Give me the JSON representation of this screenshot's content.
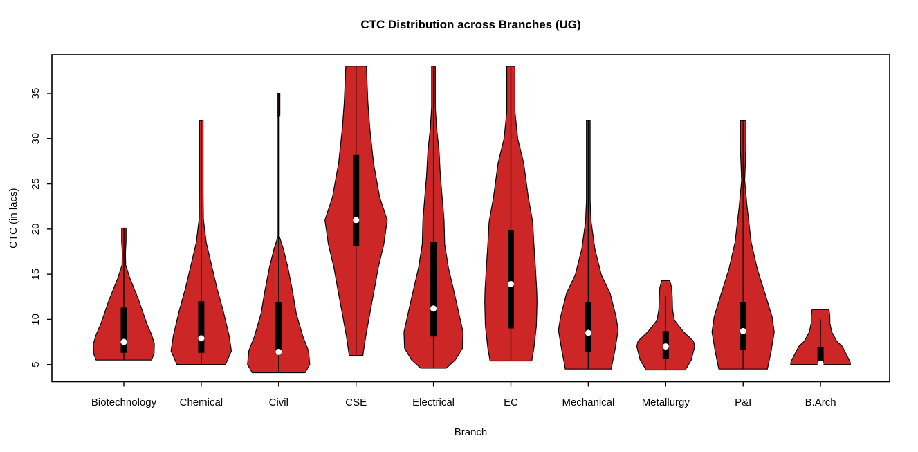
{
  "page": {
    "background": "#FFFFFF"
  },
  "chart_data": {
    "type": "violin",
    "title": "CTC Distribution across Branches (UG)",
    "xlabel": "Branch",
    "ylabel": "CTC (in lacs)",
    "yticks": [
      5,
      10,
      15,
      20,
      25,
      30,
      35
    ],
    "ylim": [
      3.1,
      39.3
    ],
    "grid": false,
    "legend": "none",
    "colors": {
      "violin_fill": "#CD2626",
      "outline": "#000000",
      "iqr_box": "#000000",
      "median_dot": "#FFFFFF",
      "text": "#000000"
    },
    "categories": [
      "Biotechnology",
      "Chemical",
      "Civil",
      "CSE",
      "Electrical",
      "EC",
      "Mechanical",
      "Metallurgy",
      "P&I",
      "B.Arch"
    ],
    "series": [
      {
        "label": "Biotechnology",
        "stats": {
          "min": 5.5,
          "q1": 6.3,
          "median": 7.5,
          "q3": 11.3,
          "max": 20.1
        },
        "line_range": [
          5.5,
          20.1
        ],
        "density_profile": [
          [
            20.1,
            0.07
          ],
          [
            18.6,
            0.07
          ],
          [
            17.3,
            0.05
          ],
          [
            16.0,
            0.06
          ],
          [
            14.7,
            0.18
          ],
          [
            13.4,
            0.33
          ],
          [
            12.2,
            0.47
          ],
          [
            10.9,
            0.6
          ],
          [
            9.6,
            0.73
          ],
          [
            8.3,
            0.89
          ],
          [
            7.3,
            0.98
          ],
          [
            6.2,
            0.97
          ],
          [
            5.5,
            0.89
          ]
        ]
      },
      {
        "label": "Chemical",
        "stats": {
          "min": 5.0,
          "q1": 6.3,
          "median": 7.9,
          "q3": 12.0,
          "max": 32.0
        },
        "line_range": [
          5.0,
          32.0
        ],
        "density_profile": [
          [
            32.0,
            0.06
          ],
          [
            28.0,
            0.06
          ],
          [
            24.0,
            0.06
          ],
          [
            21.1,
            0.07
          ],
          [
            18.5,
            0.16
          ],
          [
            16.0,
            0.33
          ],
          [
            13.4,
            0.51
          ],
          [
            10.9,
            0.71
          ],
          [
            8.3,
            0.89
          ],
          [
            6.5,
            0.97
          ],
          [
            5.0,
            0.78
          ]
        ]
      },
      {
        "label": "Civil",
        "stats": {
          "min": 4.1,
          "q1": 6.2,
          "median": 6.4,
          "q3": 11.9,
          "max": 35.0
        },
        "line_range": [
          4.1,
          35.0
        ],
        "density_profile": [
          [
            35.0,
            0.04
          ],
          [
            32.6,
            0.04
          ],
          [
            32.4,
            0.02
          ],
          [
            19.2,
            0.02
          ],
          [
            17.8,
            0.15
          ],
          [
            15.7,
            0.3
          ],
          [
            13.2,
            0.44
          ],
          [
            10.6,
            0.57
          ],
          [
            8.1,
            0.78
          ],
          [
            6.5,
            0.96
          ],
          [
            5.0,
            1.0
          ],
          [
            4.1,
            0.85
          ]
        ]
      },
      {
        "label": "CSE",
        "stats": {
          "min": 6.0,
          "q1": 18.1,
          "median": 21.0,
          "q3": 28.2,
          "max": 38.0
        },
        "line_range": [
          6.0,
          38.0
        ],
        "density_profile": [
          [
            38.0,
            0.33
          ],
          [
            34.0,
            0.38
          ],
          [
            31.2,
            0.44
          ],
          [
            27.3,
            0.56
          ],
          [
            23.5,
            0.76
          ],
          [
            21.0,
            1.0
          ],
          [
            18.3,
            0.89
          ],
          [
            15.7,
            0.71
          ],
          [
            13.2,
            0.58
          ],
          [
            10.6,
            0.44
          ],
          [
            8.1,
            0.31
          ],
          [
            6.5,
            0.24
          ],
          [
            6.0,
            0.22
          ]
        ]
      },
      {
        "label": "Electrical",
        "stats": {
          "min": 4.6,
          "q1": 8.1,
          "median": 11.2,
          "q3": 18.6,
          "max": 38.0
        },
        "line_range": [
          4.6,
          38.0
        ],
        "density_profile": [
          [
            38.0,
            0.06
          ],
          [
            33.5,
            0.06
          ],
          [
            31.2,
            0.1
          ],
          [
            28.6,
            0.18
          ],
          [
            26.0,
            0.22
          ],
          [
            23.5,
            0.28
          ],
          [
            21.0,
            0.34
          ],
          [
            18.3,
            0.36
          ],
          [
            15.7,
            0.48
          ],
          [
            13.2,
            0.65
          ],
          [
            10.6,
            0.82
          ],
          [
            8.6,
            0.95
          ],
          [
            6.8,
            0.93
          ],
          [
            5.5,
            0.7
          ],
          [
            4.6,
            0.41
          ]
        ]
      },
      {
        "label": "EC",
        "stats": {
          "min": 5.4,
          "q1": 9.0,
          "median": 13.9,
          "q3": 19.9,
          "max": 38.0
        },
        "line_range": [
          5.4,
          38.0
        ],
        "density_profile": [
          [
            38.0,
            0.13
          ],
          [
            33.0,
            0.13
          ],
          [
            30.0,
            0.22
          ],
          [
            27.3,
            0.41
          ],
          [
            23.5,
            0.56
          ],
          [
            20.8,
            0.7
          ],
          [
            18.3,
            0.74
          ],
          [
            15.7,
            0.79
          ],
          [
            13.2,
            0.83
          ],
          [
            11.9,
            0.84
          ],
          [
            9.3,
            0.82
          ],
          [
            6.8,
            0.74
          ],
          [
            5.4,
            0.67
          ]
        ]
      },
      {
        "label": "Mechanical",
        "stats": {
          "min": 4.5,
          "q1": 6.4,
          "median": 8.5,
          "q3": 11.9,
          "max": 32.0
        },
        "line_range": [
          4.5,
          32.0
        ],
        "density_profile": [
          [
            32.0,
            0.06
          ],
          [
            26.0,
            0.06
          ],
          [
            23.1,
            0.06
          ],
          [
            20.8,
            0.09
          ],
          [
            17.8,
            0.21
          ],
          [
            14.9,
            0.42
          ],
          [
            12.9,
            0.7
          ],
          [
            10.3,
            0.89
          ],
          [
            8.8,
            0.96
          ],
          [
            6.5,
            0.85
          ],
          [
            5.3,
            0.78
          ],
          [
            4.5,
            0.74
          ]
        ]
      },
      {
        "label": "Metallurgy",
        "stats": {
          "min": 4.4,
          "q1": 5.6,
          "median": 7.0,
          "q3": 8.7,
          "max": 14.3
        },
        "line_range": [
          4.4,
          12.6
        ],
        "density_profile": [
          [
            14.3,
            0.13
          ],
          [
            13.5,
            0.19
          ],
          [
            12.4,
            0.21
          ],
          [
            11.1,
            0.22
          ],
          [
            9.9,
            0.28
          ],
          [
            8.6,
            0.58
          ],
          [
            7.6,
            0.89
          ],
          [
            7.0,
            0.93
          ],
          [
            5.5,
            0.82
          ],
          [
            4.4,
            0.63
          ]
        ]
      },
      {
        "label": "P&I",
        "stats": {
          "min": 4.5,
          "q1": 6.6,
          "median": 8.7,
          "q3": 11.9,
          "max": 32.0
        },
        "line_range": [
          4.5,
          32.0
        ],
        "density_profile": [
          [
            32.0,
            0.09
          ],
          [
            28.9,
            0.09
          ],
          [
            25.4,
            0.05
          ],
          [
            22.4,
            0.13
          ],
          [
            18.5,
            0.26
          ],
          [
            15.5,
            0.46
          ],
          [
            14.2,
            0.58
          ],
          [
            12.9,
            0.7
          ],
          [
            10.3,
            0.93
          ],
          [
            8.6,
            1.0
          ],
          [
            6.5,
            0.9
          ],
          [
            5.3,
            0.83
          ],
          [
            4.5,
            0.78
          ]
        ]
      },
      {
        "label": "B.Arch",
        "stats": {
          "min": 5.0,
          "q1": 5.1,
          "median": 5.1,
          "q3": 6.9,
          "max": 11.1
        },
        "line_range": [
          5.0,
          10.0
        ],
        "density_profile": [
          [
            11.1,
            0.27
          ],
          [
            10.4,
            0.3
          ],
          [
            9.6,
            0.3
          ],
          [
            8.6,
            0.36
          ],
          [
            7.6,
            0.52
          ],
          [
            7.0,
            0.7
          ],
          [
            6.0,
            0.85
          ],
          [
            5.3,
            0.95
          ],
          [
            5.0,
            0.96
          ]
        ]
      }
    ]
  }
}
